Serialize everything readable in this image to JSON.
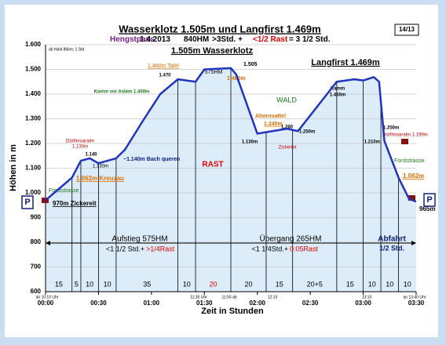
{
  "chart_data": {
    "type": "line",
    "title": "Wasserklotz 1.505m und Langfirst 1.469m",
    "subtitle": [
      {
        "text": "Hengstpass",
        "color": "#7a1f8f"
      },
      {
        "text": "1.4.2013",
        "color": "#000000"
      },
      {
        "text": "840HM",
        "color": "#000000"
      },
      {
        "text": ">3Std. +",
        "color": "#000000"
      },
      {
        "text": "<1/2 Rast",
        "color": "#e00000"
      },
      {
        "text": "= 3 1/2 Std.",
        "color": "#000000"
      }
    ],
    "page_number": "14/13",
    "y_label": "Höhen in m",
    "x_label": "Zeit in Stunden",
    "parking": "P",
    "x": [
      0,
      15,
      20,
      25,
      30,
      40,
      45,
      55,
      65,
      75,
      85,
      90,
      105,
      108,
      113,
      120,
      137,
      143,
      165,
      175,
      180,
      186,
      189,
      192,
      200,
      206,
      210
    ],
    "values": [
      970,
      1062,
      1130,
      1140,
      1120,
      1140,
      1175,
      1290,
      1400,
      1460,
      1450,
      1500,
      1505,
      1480,
      1380,
      1240,
      1260,
      1250,
      1450,
      1460,
      1455,
      1469,
      1450,
      1210,
      1062,
      975,
      965
    ],
    "color": "#1f35c0",
    "fill": "#dcecf8",
    "xlim": [
      0,
      210
    ],
    "ylim": [
      600,
      1600
    ],
    "xticks": [
      {
        "value": 0,
        "label": "00:00"
      },
      {
        "value": 30,
        "label": "00:30"
      },
      {
        "value": 60,
        "label": "01:00"
      },
      {
        "value": 90,
        "label": "01:30"
      },
      {
        "value": 120,
        "label": "02:00"
      },
      {
        "value": 150,
        "label": "02:30"
      },
      {
        "value": 180,
        "label": "03:00"
      },
      {
        "value": 210,
        "label": "03:30"
      }
    ],
    "yticks": [
      600,
      700,
      800,
      900,
      {
        "value": 1000,
        "label": "1.000"
      },
      {
        "value": 1100,
        "label": "1.100"
      },
      {
        "value": 1200,
        "label": "1.200"
      },
      {
        "value": 1300,
        "label": "1.300"
      },
      {
        "value": 1400,
        "label": "1.400"
      },
      {
        "value": 1500,
        "label": "1.500"
      },
      {
        "value": 1600,
        "label": "1.600"
      }
    ],
    "grid": true,
    "segment_minutes": [
      15,
      5,
      10,
      10,
      35,
      10,
      20,
      20,
      15,
      {
        "value": 25,
        "label": "20+5"
      },
      15,
      10,
      10,
      10
    ],
    "annotations": [
      {
        "text": "1.505m Wasserklotz",
        "color": "#000000"
      },
      {
        "text": "Langfirst 1.469m",
        "color": "#000000"
      },
      {
        "text": "ab Haid 86km; 1 Std.",
        "color": "#000000"
      },
      {
        "text": "1.505",
        "color": "#000000"
      },
      {
        "text": "575HM",
        "color": "#000000"
      },
      {
        "text": "1.460m Tafel",
        "color": "#e07000"
      },
      {
        "text": "1.470",
        "color": "#000000"
      },
      {
        "text": "1.480m",
        "color": "#e07000"
      },
      {
        "text": "Kamm vor Aslem 1.400m",
        "color": "#1a7a1a"
      },
      {
        "text": "WALD",
        "color": "#1a7a1a"
      },
      {
        "text": "Ahornsattel",
        "color": "#e07000"
      },
      {
        "text": "1.240m",
        "color": "#e07000"
      },
      {
        "text": "1.260",
        "color": "#000000"
      },
      {
        "text": "1.250m",
        "color": "#000000"
      },
      {
        "text": "1.130m",
        "color": "#000000"
      },
      {
        "text": "Zickerhit",
        "color": "#d00000"
      },
      {
        "text": "Kamm",
        "color": "#000000"
      },
      {
        "text": "1.450m",
        "color": "#000000"
      },
      {
        "text": "1.250m",
        "color": "#000000"
      },
      {
        "text": "1.210m",
        "color": "#000000"
      },
      {
        "text": "Dörflmoaralm 1.199m",
        "color": "#d00000"
      },
      {
        "text": "Forststrasse",
        "color": "#1a7a1a"
      },
      {
        "text": "1.062m",
        "color": "#e07000"
      },
      {
        "text": "965m",
        "color": "#000000"
      },
      {
        "text": "Dörflmoaralm",
        "color": "#d00000"
      },
      {
        "text": "1.130m",
        "color": "#d00000"
      },
      {
        "text": "1.140",
        "color": "#000000"
      },
      {
        "text": "1.130m",
        "color": "#000000"
      },
      {
        "text": "1.062m Kreuzau",
        "color": "#e07000"
      },
      {
        "text": "Forststrasse",
        "color": "#1a7a1a"
      },
      {
        "text": "970m Zickereit",
        "color": "#000000"
      },
      {
        "text": "~1.140m Bach queren",
        "color": "#102080"
      },
      {
        "text": "RAST",
        "color": "#e00000"
      },
      {
        "text": "Aufstieg 575HM",
        "color": "#000000"
      },
      {
        "text": "<1 1/2 Std.+",
        "color": "#000000"
      },
      {
        "text": ">1/4Rast",
        "color": "#e00000"
      },
      {
        "text": "Übergang 265HM",
        "color": "#000000"
      },
      {
        "text": "<1 1/4Std.+",
        "color": "#000000"
      },
      {
        "text": "0:05Rast",
        "color": "#e00000"
      },
      {
        "text": "Abfahrt",
        "color": "#102080"
      },
      {
        "text": "1/2 Std.",
        "color": "#102080"
      },
      {
        "text": "ab 10:10 Uhr",
        "color": "#000000"
      },
      {
        "text": "11:35 Uhr",
        "color": "#000000"
      },
      {
        "text": "11:55 ab",
        "color": "#000000"
      },
      {
        "text": "12:15",
        "color": "#000000"
      },
      {
        "text": "13:10",
        "color": "#000000"
      },
      {
        "text": "an 13:40 Uhr",
        "color": "#000000"
      }
    ]
  }
}
